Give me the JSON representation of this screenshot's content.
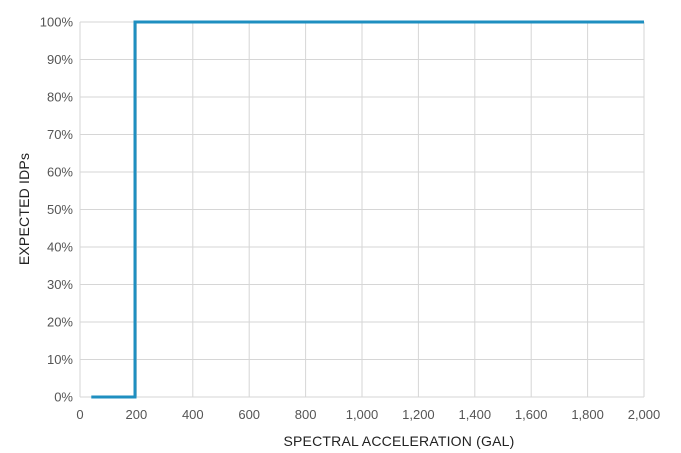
{
  "chart_data": {
    "type": "line",
    "step": true,
    "title": "",
    "xlabel": "SPECTRAL ACCELERATION (GAL)",
    "ylabel": "EXPECTED IDPs",
    "xlim": [
      0,
      2000
    ],
    "ylim": [
      0,
      100
    ],
    "x_ticks": [
      0,
      200,
      400,
      600,
      800,
      1000,
      1200,
      1400,
      1600,
      1800,
      2000
    ],
    "x_tick_labels": [
      "0",
      "200",
      "400",
      "600",
      "800",
      "1,000",
      "1,200",
      "1,400",
      "1,600",
      "1,800",
      "2,000"
    ],
    "y_ticks": [
      0,
      10,
      20,
      30,
      40,
      50,
      60,
      70,
      80,
      90,
      100
    ],
    "y_tick_labels": [
      "0%",
      "10%",
      "20%",
      "30%",
      "40%",
      "50%",
      "60%",
      "70%",
      "80%",
      "90%",
      "100%"
    ],
    "grid": true,
    "legend": "none",
    "line_color": "#1f8fc0",
    "grid_color": "#d6d6d6",
    "series": [
      {
        "x": [
          40,
          195,
          195,
          2000
        ],
        "y": [
          0,
          0,
          100,
          100
        ]
      }
    ]
  }
}
